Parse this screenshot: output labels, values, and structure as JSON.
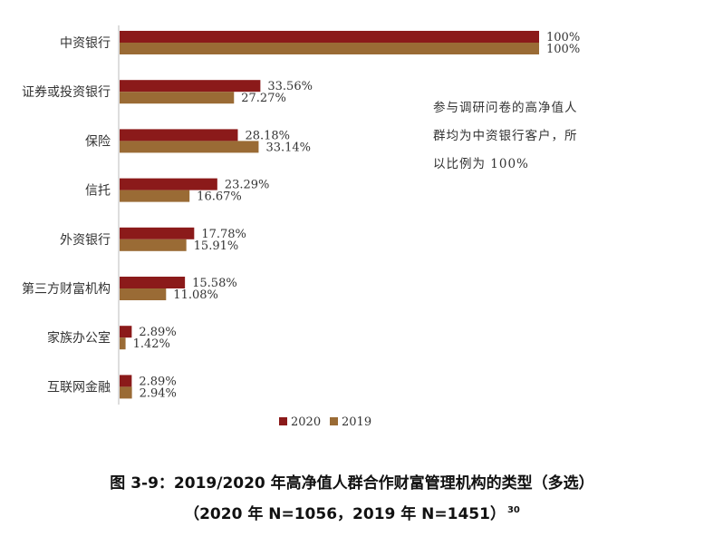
{
  "chart_data": {
    "type": "bar",
    "orientation": "horizontal",
    "categories": [
      "中资银行",
      "证券或投资银行",
      "保险",
      "信托",
      "外资银行",
      "第三方财富机构",
      "家族办公室",
      "互联网金融"
    ],
    "series": [
      {
        "name": "2020",
        "color": "#8b1a1a",
        "values": [
          100,
          33.56,
          28.18,
          23.29,
          17.78,
          15.58,
          2.89,
          2.89
        ],
        "labels": [
          "100%",
          "33.56%",
          "28.18%",
          "23.29%",
          "17.78%",
          "15.58%",
          "2.89%",
          "2.89%"
        ]
      },
      {
        "name": "2019",
        "color": "#9a6b35",
        "values": [
          100,
          27.27,
          33.14,
          16.67,
          15.91,
          11.08,
          1.42,
          2.94
        ],
        "labels": [
          "100%",
          "27.27%",
          "33.14%",
          "16.67%",
          "15.91%",
          "11.08%",
          "1.42%",
          "2.94%"
        ]
      }
    ],
    "xlim": [
      0,
      100
    ],
    "grid": false,
    "legend_position": "bottom-center",
    "annotation_lines": [
      "参与调研问卷的高净值人",
      "群均为中资银行客户，所",
      "以比例为 100%"
    ]
  },
  "caption": {
    "line1": "图 3-9：2019/2020 年高净值人群合作财富管理机构的类型（多选）",
    "line2": "（2020 年 N=1056，2019 年 N=1451）",
    "footnote": "30"
  }
}
